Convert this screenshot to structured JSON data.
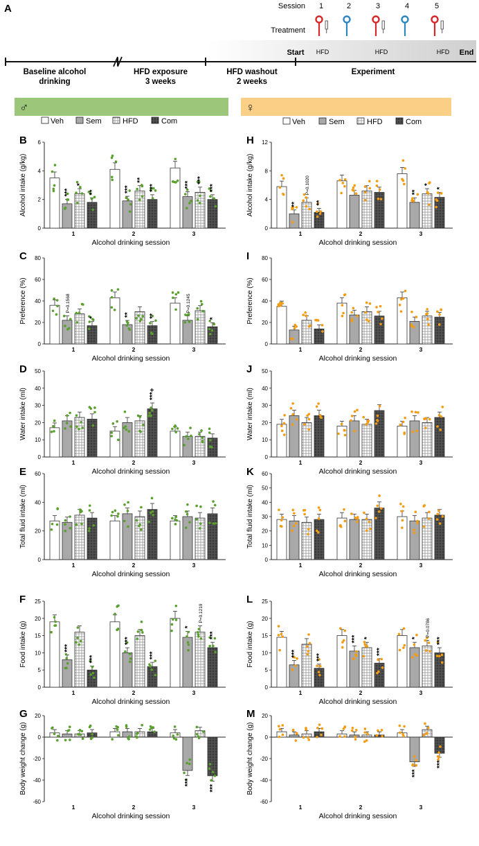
{
  "timeline": {
    "panel_letter": "A",
    "session_label": "Session",
    "treatment_label": "Treatment",
    "sessions": [
      {
        "number": "1",
        "pin": "red",
        "syringe": true
      },
      {
        "number": "2",
        "pin": "blue",
        "syringe": false
      },
      {
        "number": "3",
        "pin": "red",
        "syringe": true
      },
      {
        "number": "4",
        "pin": "blue",
        "syringe": false
      },
      {
        "number": "5",
        "pin": "red",
        "syringe": true
      }
    ],
    "phases": [
      {
        "line1": "Baseline alcohol",
        "line2": "drinking"
      },
      {
        "line1": "HFD exposure",
        "line2": "3 weeks"
      },
      {
        "line1": "HFD washout",
        "line2": "2 weeks"
      },
      {
        "line1": "Experiment",
        "line2": ""
      }
    ],
    "start_label": "Start",
    "end_label": "End",
    "hfd_labels": [
      "HFD",
      "HFD",
      "HFD"
    ],
    "colors": {
      "red": "#d62828",
      "blue": "#2e86c1"
    }
  },
  "groups": {
    "male": {
      "symbol": "♂",
      "bar_color": "#9fc87c",
      "dot_color": "#5aa02c"
    },
    "female": {
      "symbol": "♀",
      "bar_color": "#f9c77c",
      "dot_color": "#f39c12"
    }
  },
  "legend": [
    "Veh",
    "Sem",
    "HFD",
    "Com"
  ],
  "chart_data": [
    {
      "letter": "B",
      "sex": "male",
      "type": "bar",
      "ylabel": "Alcohol intake (g/kg)",
      "xlabel": "Alcohol drinking session",
      "categories": [
        "1",
        "2",
        "3"
      ],
      "ylim": [
        0,
        6
      ],
      "yticks": [
        0,
        2,
        4,
        6
      ],
      "series": [
        {
          "name": "Veh",
          "values": [
            3.5,
            4.1,
            4.2
          ]
        },
        {
          "name": "Sem",
          "values": [
            1.7,
            1.9,
            2.2
          ]
        },
        {
          "name": "HFD",
          "values": [
            2.4,
            2.6,
            2.5
          ]
        },
        {
          "name": "Com",
          "values": [
            1.8,
            2.0,
            2.0
          ]
        }
      ],
      "annotations": [
        [
          "",
          "***",
          "*",
          "**"
        ],
        [
          "",
          "***",
          "**",
          "***"
        ],
        [
          "",
          "***",
          "***",
          "***"
        ]
      ]
    },
    {
      "letter": "C",
      "sex": "male",
      "type": "bar",
      "ylabel": "Preference (%)",
      "xlabel": "Alcohol drinking session",
      "categories": [
        "1",
        "2",
        "3"
      ],
      "ylim": [
        0,
        80
      ],
      "yticks": [
        0,
        20,
        40,
        60,
        80
      ],
      "series": [
        {
          "name": "Veh",
          "values": [
            36,
            43,
            38
          ]
        },
        {
          "name": "Sem",
          "values": [
            22,
            18,
            22
          ]
        },
        {
          "name": "HFD",
          "values": [
            28,
            30,
            31
          ]
        },
        {
          "name": "Com",
          "values": [
            17,
            17,
            16
          ]
        }
      ],
      "annotations": [
        [
          "",
          "P=0.1568",
          "",
          "*"
        ],
        [
          "",
          "**",
          "",
          "**"
        ],
        [
          "",
          "P=0.1245",
          "",
          "*"
        ]
      ]
    },
    {
      "letter": "D",
      "sex": "male",
      "type": "bar",
      "ylabel": "Water intake (ml)",
      "xlabel": "Alcohol drinking session",
      "categories": [
        "1",
        "2",
        "3"
      ],
      "ylim": [
        0,
        50
      ],
      "yticks": [
        0,
        10,
        20,
        30,
        40,
        50
      ],
      "series": [
        {
          "name": "Veh",
          "values": [
            17,
            15,
            15
          ]
        },
        {
          "name": "Sem",
          "values": [
            21,
            20,
            12
          ]
        },
        {
          "name": "HFD",
          "values": [
            23,
            21,
            12
          ]
        },
        {
          "name": "Com",
          "values": [
            22,
            28,
            11
          ]
        }
      ],
      "annotations": [
        [
          "",
          "",
          "",
          ""
        ],
        [
          "",
          "",
          "",
          "***+"
        ],
        [
          "",
          "",
          "",
          ""
        ]
      ]
    },
    {
      "letter": "E",
      "sex": "male",
      "type": "bar",
      "ylabel": "Total fluid intake (ml)",
      "xlabel": "Alcohol drinking session",
      "categories": [
        "1",
        "2",
        "3"
      ],
      "ylim": [
        0,
        60
      ],
      "yticks": [
        0,
        20,
        40,
        60
      ],
      "series": [
        {
          "name": "Veh",
          "values": [
            27,
            27,
            27
          ]
        },
        {
          "name": "Sem",
          "values": [
            26,
            32,
            30
          ]
        },
        {
          "name": "HFD",
          "values": [
            31,
            30,
            29
          ]
        },
        {
          "name": "Com",
          "values": [
            29,
            35,
            32
          ]
        }
      ],
      "annotations": [
        [
          "",
          "",
          "",
          ""
        ],
        [
          "",
          "",
          "",
          ""
        ],
        [
          "",
          "",
          "",
          ""
        ]
      ]
    },
    {
      "letter": "F",
      "sex": "male",
      "type": "bar",
      "ylabel": "Food intake (g)",
      "xlabel": "Alcohol drinking session",
      "categories": [
        "1",
        "2",
        "3"
      ],
      "ylim": [
        0,
        25
      ],
      "yticks": [
        0,
        5,
        10,
        15,
        20,
        25
      ],
      "series": [
        {
          "name": "Veh",
          "values": [
            19,
            19,
            20
          ]
        },
        {
          "name": "Sem",
          "values": [
            8,
            10,
            14.5
          ]
        },
        {
          "name": "HFD",
          "values": [
            16,
            15,
            16
          ]
        },
        {
          "name": "Com",
          "values": [
            5,
            6,
            11.5
          ]
        }
      ],
      "annotations": [
        [
          "",
          "***",
          "",
          "***"
        ],
        [
          "",
          "***",
          "",
          "***"
        ],
        [
          "",
          "*",
          "P=0.1219",
          "***"
        ]
      ]
    },
    {
      "letter": "G",
      "sex": "male",
      "type": "bar",
      "ylabel": "Body weight change (g)",
      "xlabel": "Alcohol drinking session",
      "categories": [
        "1",
        "2",
        "3"
      ],
      "ylim": [
        -60,
        20
      ],
      "yticks": [
        -60,
        -40,
        -20,
        0,
        20
      ],
      "series": [
        {
          "name": "Veh",
          "values": [
            4,
            5,
            4
          ]
        },
        {
          "name": "Sem",
          "values": [
            3,
            5,
            -31
          ]
        },
        {
          "name": "HFD",
          "values": [
            3,
            5,
            6
          ]
        },
        {
          "name": "Com",
          "values": [
            4,
            5,
            -36
          ]
        }
      ],
      "annotations": [
        [
          "",
          "",
          "",
          ""
        ],
        [
          "",
          "",
          "",
          ""
        ],
        [
          "",
          "***",
          "",
          "***"
        ]
      ]
    },
    {
      "letter": "H",
      "sex": "female",
      "type": "bar",
      "ylabel": "Alcohol intake (g/kg)",
      "xlabel": "Alcohol drinking session",
      "categories": [
        "1",
        "2",
        "3"
      ],
      "ylim": [
        0,
        12
      ],
      "yticks": [
        0,
        4,
        8,
        12
      ],
      "series": [
        {
          "name": "Veh",
          "values": [
            5.8,
            6.6,
            7.6
          ]
        },
        {
          "name": "Sem",
          "values": [
            2.0,
            4.6,
            3.6
          ]
        },
        {
          "name": "HFD",
          "values": [
            3.6,
            5.2,
            4.8
          ]
        },
        {
          "name": "Com",
          "values": [
            2.2,
            5.0,
            4.3
          ]
        }
      ],
      "annotations": [
        [
          "",
          "**",
          "P=0.1020",
          "**"
        ],
        [
          "",
          "",
          "",
          ""
        ],
        [
          "",
          "**",
          "*",
          "*"
        ]
      ]
    },
    {
      "letter": "I",
      "sex": "female",
      "type": "bar",
      "ylabel": "Preference (%)",
      "xlabel": "Alcohol drinking session",
      "categories": [
        "1",
        "2",
        "3"
      ],
      "ylim": [
        0,
        80
      ],
      "yticks": [
        0,
        20,
        40,
        60,
        80
      ],
      "series": [
        {
          "name": "Veh",
          "values": [
            35,
            38,
            43
          ]
        },
        {
          "name": "Sem",
          "values": [
            13,
            27,
            21
          ]
        },
        {
          "name": "HFD",
          "values": [
            22,
            30,
            26
          ]
        },
        {
          "name": "Com",
          "values": [
            14,
            26,
            25
          ]
        }
      ],
      "annotations": [
        [
          "",
          "",
          "",
          ""
        ],
        [
          "",
          "",
          "",
          ""
        ],
        [
          "",
          "",
          "",
          ""
        ]
      ]
    },
    {
      "letter": "J",
      "sex": "female",
      "type": "bar",
      "ylabel": "Water intake (ml)",
      "xlabel": "Alcohol drinking session",
      "categories": [
        "1",
        "2",
        "3"
      ],
      "ylim": [
        0,
        50
      ],
      "yticks": [
        0,
        10,
        20,
        30,
        40,
        50
      ],
      "series": [
        {
          "name": "Veh",
          "values": [
            19,
            18,
            18
          ]
        },
        {
          "name": "Sem",
          "values": [
            24,
            21,
            21
          ]
        },
        {
          "name": "HFD",
          "values": [
            20,
            19,
            20
          ]
        },
        {
          "name": "Com",
          "values": [
            24,
            27,
            23
          ]
        }
      ],
      "annotations": [
        [
          "",
          "",
          "",
          ""
        ],
        [
          "",
          "",
          "",
          ""
        ],
        [
          "",
          "",
          "",
          ""
        ]
      ]
    },
    {
      "letter": "K",
      "sex": "female",
      "type": "bar",
      "ylabel": "Total fluid intake (ml)",
      "xlabel": "Alcohol drinking session",
      "categories": [
        "1",
        "2",
        "3"
      ],
      "ylim": [
        0,
        60
      ],
      "yticks": [
        0,
        10,
        20,
        30,
        40,
        50,
        60
      ],
      "series": [
        {
          "name": "Veh",
          "values": [
            28,
            29,
            30
          ]
        },
        {
          "name": "Sem",
          "values": [
            27,
            28,
            27
          ]
        },
        {
          "name": "HFD",
          "values": [
            26,
            28,
            29
          ]
        },
        {
          "name": "Com",
          "values": [
            28,
            36,
            31
          ]
        }
      ],
      "annotations": [
        [
          "",
          "",
          "",
          ""
        ],
        [
          "",
          "",
          "",
          ""
        ],
        [
          "",
          "",
          "",
          ""
        ]
      ]
    },
    {
      "letter": "L",
      "sex": "female",
      "type": "bar",
      "ylabel": "Food intake (g)",
      "xlabel": "Alcohol drinking session",
      "categories": [
        "1",
        "2",
        "3"
      ],
      "ylim": [
        0,
        25
      ],
      "yticks": [
        0,
        5,
        10,
        15,
        20,
        25
      ],
      "series": [
        {
          "name": "Veh",
          "values": [
            14.5,
            15,
            15
          ]
        },
        {
          "name": "Sem",
          "values": [
            6.5,
            10.5,
            11.5
          ]
        },
        {
          "name": "HFD",
          "values": [
            12.5,
            11.5,
            12
          ]
        },
        {
          "name": "Com",
          "values": [
            5.5,
            7,
            10
          ]
        }
      ],
      "annotations": [
        [
          "",
          "***",
          "",
          "***"
        ],
        [
          "",
          "***",
          "*",
          "***"
        ],
        [
          "",
          "*",
          "P=0.0786",
          "***"
        ]
      ]
    },
    {
      "letter": "M",
      "sex": "female",
      "type": "bar",
      "ylabel": "Body weight change (g)",
      "xlabel": "Alcohol drinking session",
      "categories": [
        "1",
        "2",
        "3"
      ],
      "ylim": [
        -60,
        20
      ],
      "yticks": [
        -60,
        -40,
        -20,
        0,
        20
      ],
      "series": [
        {
          "name": "Veh",
          "values": [
            5,
            3,
            4
          ]
        },
        {
          "name": "Sem",
          "values": [
            2,
            2,
            -23
          ]
        },
        {
          "name": "HFD",
          "values": [
            3,
            2,
            7
          ]
        },
        {
          "name": "Com",
          "values": [
            5,
            2,
            -15
          ]
        }
      ],
      "annotations": [
        [
          "",
          "",
          "",
          ""
        ],
        [
          "",
          "",
          "",
          ""
        ],
        [
          "",
          "***",
          "",
          "***"
        ]
      ]
    }
  ]
}
